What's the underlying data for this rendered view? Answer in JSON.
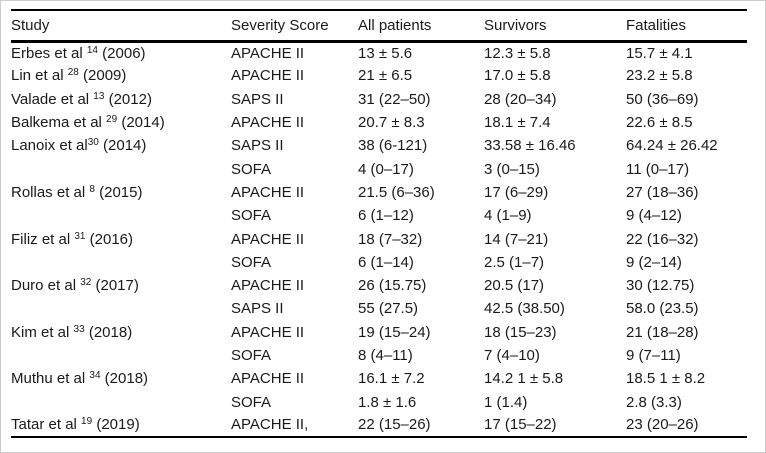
{
  "colors": {
    "text": "#1a1a1a",
    "rule": "#000000",
    "page_edge": "#cccccc"
  },
  "table": {
    "columns": [
      "Study",
      "Severity Score",
      "All patients",
      "Survivors",
      "Fatalities"
    ],
    "rows": [
      {
        "study": "Erbes et al ",
        "sup": "14",
        "year": " (2006)",
        "score": "APACHE II",
        "all_patients": "13 ± 5.6",
        "survivors": "12.3 ± 5.8",
        "fatalities": "15.7 ± 4.1"
      },
      {
        "study": "Lin et al ",
        "sup": "28",
        "year": " (2009)",
        "score": "APACHE II",
        "all_patients": "21 ± 6.5",
        "survivors": "17.0 ± 5.8",
        "fatalities": "23.2 ± 5.8"
      },
      {
        "study": "Valade et al ",
        "sup": "13",
        "year": " (2012)",
        "score": "SAPS II",
        "all_patients": "31 (22–50)",
        "survivors": "28 (20–34)",
        "fatalities": "50 (36–69)"
      },
      {
        "study": "Balkema et al ",
        "sup": "29",
        "year": " (2014)",
        "score": "APACHE II",
        "all_patients": "20.7 ± 8.3",
        "survivors": "18.1 ± 7.4",
        "fatalities": "22.6 ± 8.5"
      },
      {
        "study": "Lanoix et al",
        "sup": "30",
        "year": " (2014)",
        "score": "SAPS II",
        "all_patients": "38 (6-121)",
        "survivors": "33.58 ± 16.46",
        "fatalities": "64.24 ± 26.42"
      },
      {
        "study": "",
        "sup": "",
        "year": "",
        "score": "SOFA",
        "all_patients": "4 (0–17)",
        "survivors": "3 (0–15)",
        "fatalities": "11 (0–17)"
      },
      {
        "study": "Rollas et al ",
        "sup": "8",
        "year": " (2015)",
        "score": "APACHE II",
        "all_patients": "21.5 (6–36)",
        "survivors": "17 (6–29)",
        "fatalities": "27 (18–36)"
      },
      {
        "study": "",
        "sup": "",
        "year": "",
        "score": "SOFA",
        "all_patients": "6 (1–12)",
        "survivors": "4 (1–9)",
        "fatalities": "9 (4–12)"
      },
      {
        "study": "Filiz et al ",
        "sup": "31",
        "year": " (2016)",
        "score": "APACHE II",
        "all_patients": "18 (7–32)",
        "survivors": "14 (7–21)",
        "fatalities": "22 (16–32)"
      },
      {
        "study": "",
        "sup": "",
        "year": "",
        "score": "SOFA",
        "all_patients": "6 (1–14)",
        "survivors": "2.5 (1–7)",
        "fatalities": "9 (2–14)"
      },
      {
        "study": "Duro et al ",
        "sup": "32",
        "year": " (2017)",
        "score": "APACHE II",
        "all_patients": "26 (15.75)",
        "survivors": "20.5 (17)",
        "fatalities": "30 (12.75)"
      },
      {
        "study": "",
        "sup": "",
        "year": "",
        "score": "SAPS II",
        "all_patients": "55 (27.5)",
        "survivors": "42.5 (38.50)",
        "fatalities": "58.0 (23.5)"
      },
      {
        "study": "Kim et al ",
        "sup": "33",
        "year": " (2018)",
        "score": "APACHE II",
        "all_patients": "19 (15–24)",
        "survivors": "18 (15–23)",
        "fatalities": "21 (18–28)"
      },
      {
        "study": "",
        "sup": "",
        "year": "",
        "score": "SOFA",
        "all_patients": "8 (4–11)",
        "survivors": "7 (4–10)",
        "fatalities": "9 (7–11)"
      },
      {
        "study": "Muthu et al ",
        "sup": "34",
        "year": " (2018)",
        "score": "APACHE II",
        "all_patients": "16.1 ± 7.2",
        "survivors": "14.2 1 ± 5.8",
        "fatalities": "18.5 1 ± 8.2"
      },
      {
        "study": "",
        "sup": "",
        "year": "",
        "score": "SOFA",
        "all_patients": "1.8 ± 1.6",
        "survivors": "1 (1.4)",
        "fatalities": "2.8 (3.3)"
      },
      {
        "study": "Tatar et al ",
        "sup": "19",
        "year": " (2019)",
        "score": "APACHE II,",
        "all_patients": "22 (15–26)",
        "survivors": "17 (15–22)",
        "fatalities": "23 (20–26)"
      }
    ]
  }
}
